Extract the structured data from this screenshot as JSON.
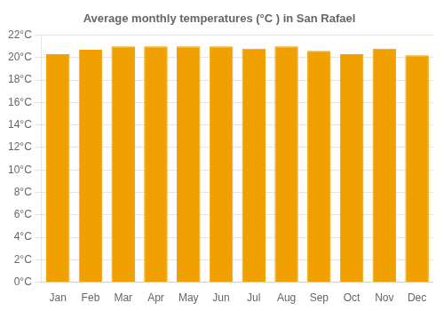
{
  "chart_data": {
    "type": "bar",
    "title": "Average monthly temperatures (°C ) in San Rafael",
    "categories": [
      "Jan",
      "Feb",
      "Mar",
      "Apr",
      "May",
      "Jun",
      "Jul",
      "Aug",
      "Sep",
      "Oct",
      "Nov",
      "Dec"
    ],
    "values": [
      20.3,
      20.7,
      21.0,
      21.0,
      21.0,
      21.0,
      20.8,
      21.0,
      20.6,
      20.3,
      20.8,
      20.2
    ],
    "color": "#F0A000",
    "ylim": [
      0,
      22
    ],
    "yticks": [
      {
        "value": 0,
        "label": "0°C"
      },
      {
        "value": 2,
        "label": "2°C"
      },
      {
        "value": 4,
        "label": "4°C"
      },
      {
        "value": 6,
        "label": "6°C"
      },
      {
        "value": 8,
        "label": "8°C"
      },
      {
        "value": 10,
        "label": "10°C"
      },
      {
        "value": 12,
        "label": "12°C"
      },
      {
        "value": 14,
        "label": "14°C"
      },
      {
        "value": 16,
        "label": "16°C"
      },
      {
        "value": 18,
        "label": "18°C"
      },
      {
        "value": 20,
        "label": "20°C"
      },
      {
        "value": 22,
        "label": "22°C"
      }
    ],
    "grid": true
  }
}
